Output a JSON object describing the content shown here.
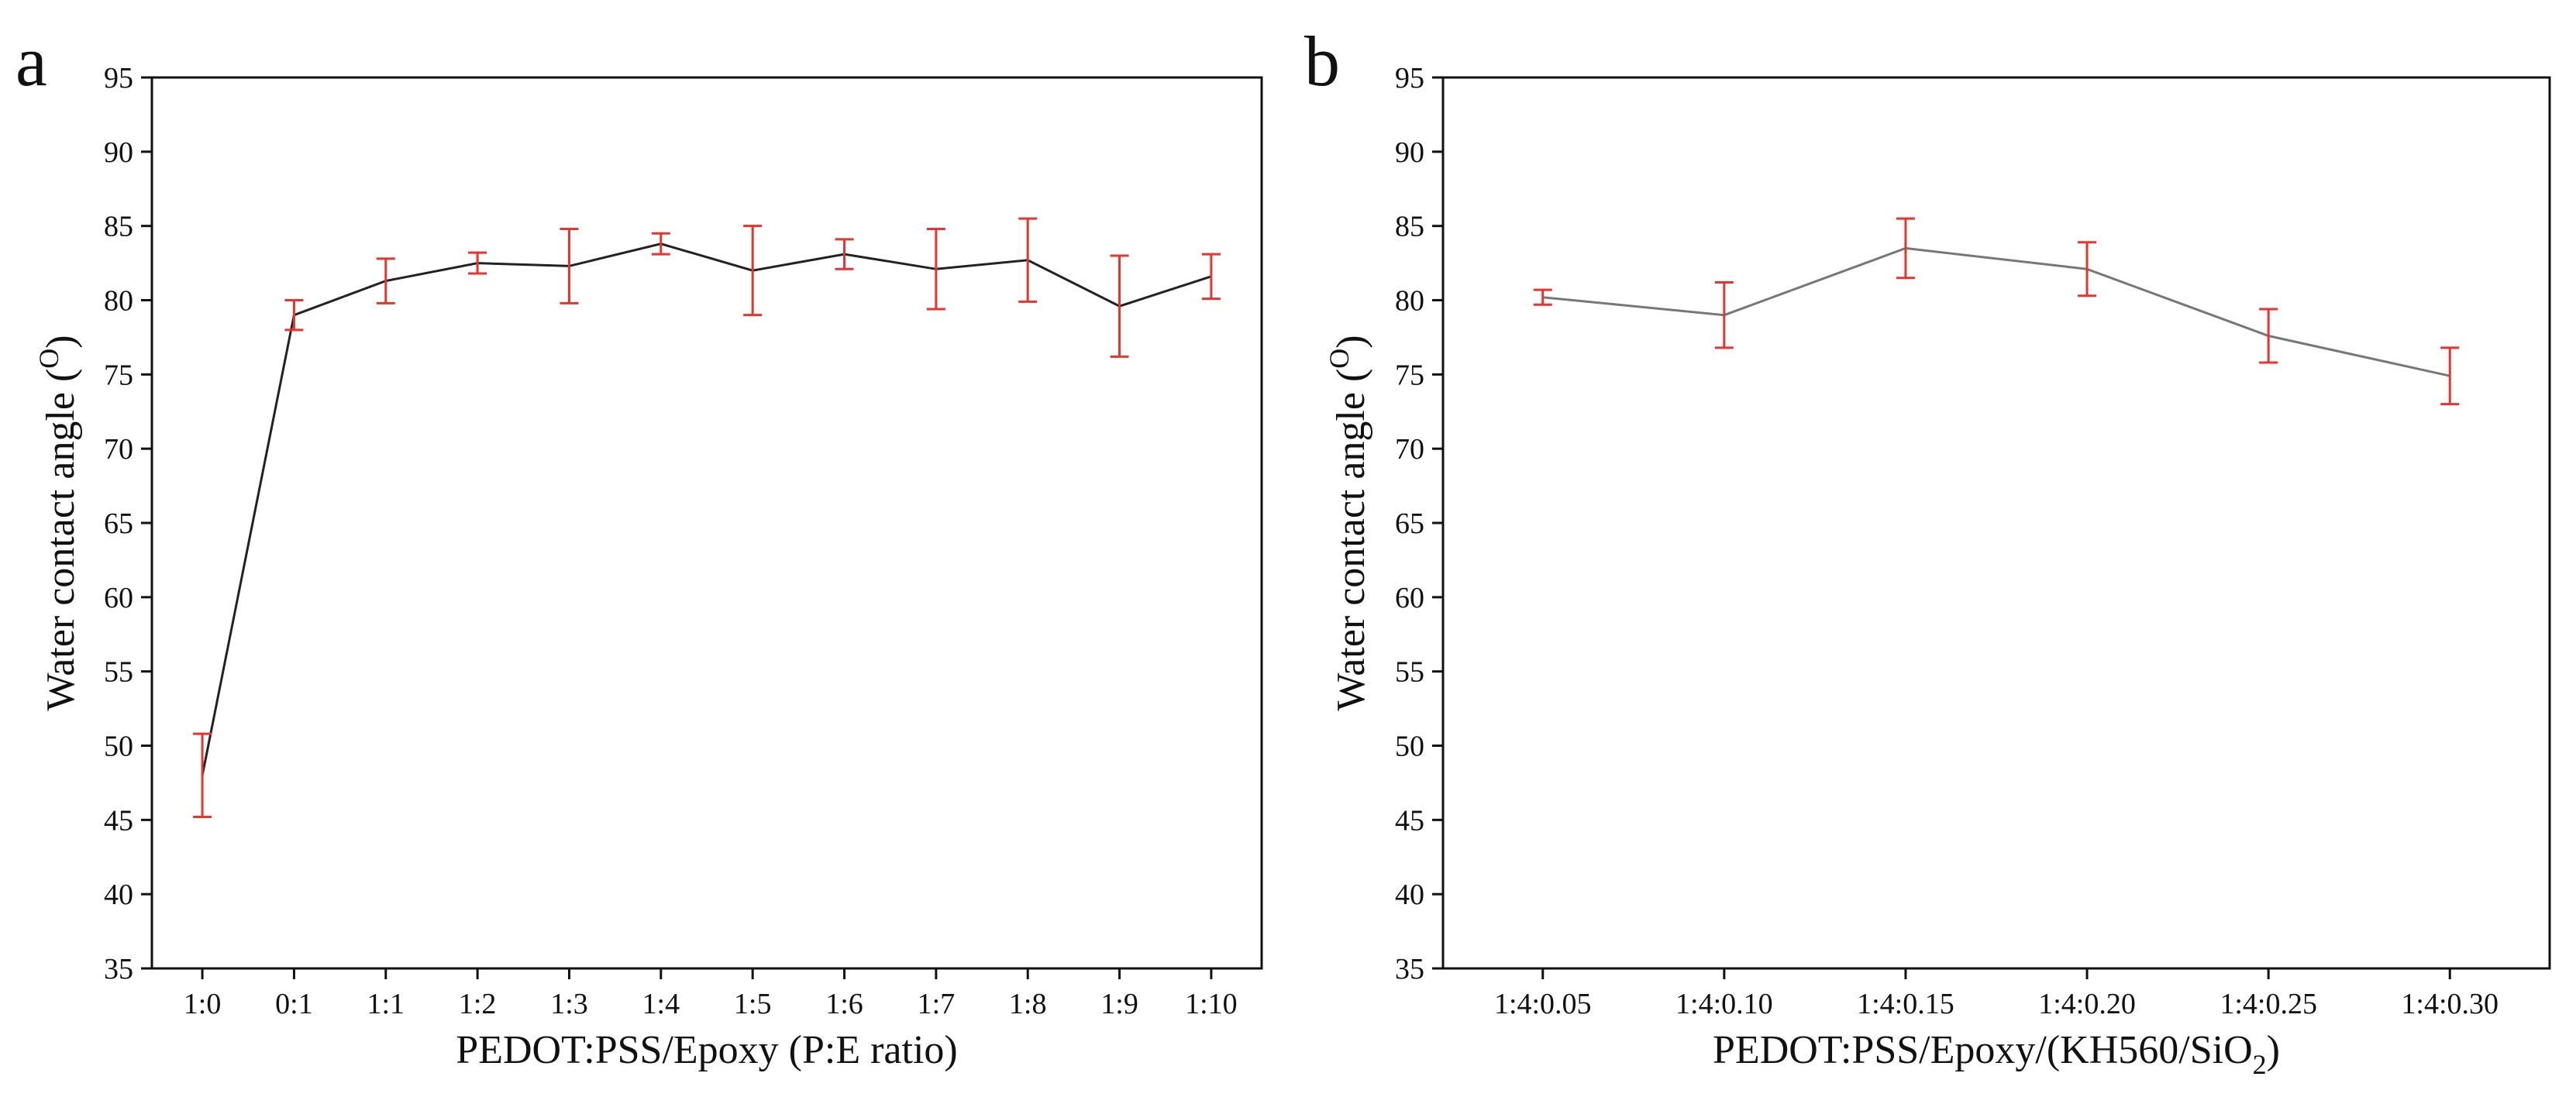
{
  "chart_data": [
    {
      "type": "line",
      "panel_label": "a",
      "title": "",
      "xlabel": "PEDOT:PSS/Epoxy (P:E ratio)",
      "ylabel": "Water contact angle (",
      "ylabel_unit_sup": "O",
      "ylabel_close": ")",
      "ylim": [
        35,
        95
      ],
      "yticks": [
        35,
        40,
        45,
        50,
        55,
        60,
        65,
        70,
        75,
        80,
        85,
        90,
        95
      ],
      "categories": [
        "1:0",
        "0:1",
        "1:1",
        "1:2",
        "1:3",
        "1:4",
        "1:5",
        "1:6",
        "1:7",
        "1:8",
        "1:9",
        "1:10"
      ],
      "series": [
        {
          "name": "Water contact angle",
          "values": [
            48.0,
            79.0,
            81.3,
            82.5,
            82.3,
            83.8,
            82.0,
            83.1,
            82.1,
            82.7,
            79.6,
            81.6
          ],
          "errors": [
            2.8,
            1.0,
            1.5,
            0.7,
            2.5,
            0.7,
            3.0,
            1.0,
            2.7,
            2.8,
            3.4,
            1.5
          ],
          "line_color": "#222222",
          "error_color": "#e8332e"
        }
      ],
      "grid": false,
      "legend": "none"
    },
    {
      "type": "line",
      "panel_label": "b",
      "title": "",
      "xlabel": "PEDOT:PSS/Epoxy/(KH560/SiO",
      "xlabel_sub": "2",
      "xlabel_close": ")",
      "ylabel": "Water contact angle (",
      "ylabel_unit_sup": "O",
      "ylabel_close": ")",
      "ylim": [
        35,
        95
      ],
      "yticks": [
        35,
        40,
        45,
        50,
        55,
        60,
        65,
        70,
        75,
        80,
        85,
        90,
        95
      ],
      "categories": [
        "1:4:0.05",
        "1:4:0.10",
        "1:4:0.15",
        "1:4:0.20",
        "1:4:0.25",
        "1:4:0.30"
      ],
      "series": [
        {
          "name": "Water contact angle",
          "values": [
            80.2,
            79.0,
            83.5,
            82.1,
            77.6,
            74.9
          ],
          "errors": [
            0.5,
            2.2,
            2.0,
            1.8,
            1.8,
            1.9
          ],
          "line_color": "#777777",
          "error_color": "#e8332e"
        }
      ],
      "grid": false,
      "legend": "none"
    }
  ]
}
